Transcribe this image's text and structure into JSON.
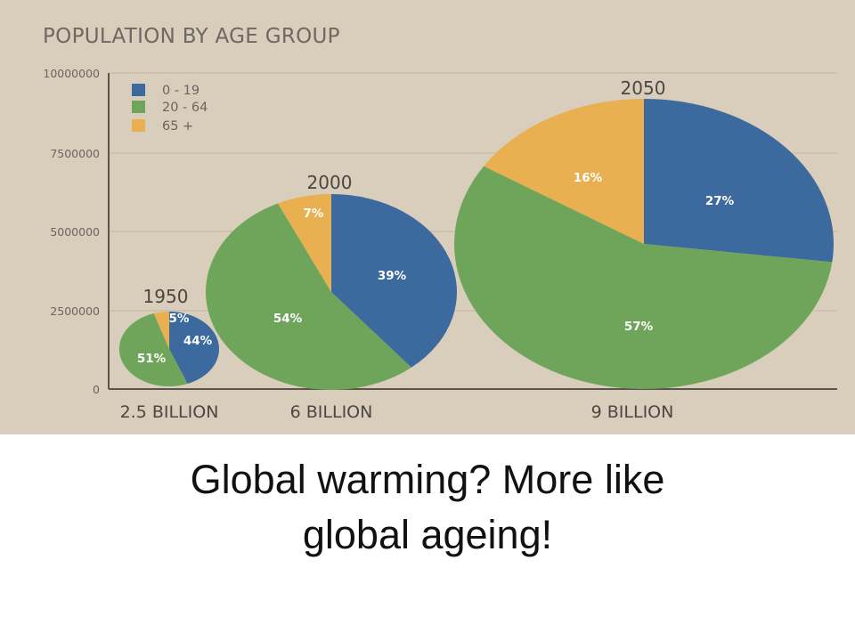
{
  "caption": {
    "line1": "Global warming? More like",
    "line2": "global ageing!"
  },
  "chart_data": {
    "type": "pie",
    "title": "POPULATION BY AGE GROUP",
    "yticks": [
      "10000000",
      "7500000",
      "5000000",
      "2500000",
      "0"
    ],
    "ylim": [
      0,
      10000000
    ],
    "grid": true,
    "legend_position": "top-left",
    "legend": [
      {
        "label": "0   - 19",
        "color": "#3c6a9e"
      },
      {
        "label": "20 - 64",
        "color": "#6fa55a"
      },
      {
        "label": "65 +",
        "color": "#e8b050"
      }
    ],
    "series": [
      {
        "name": "0 - 19",
        "color": "#3c6a9e"
      },
      {
        "name": "20 - 64",
        "color": "#6fa55a"
      },
      {
        "name": "65 +",
        "color": "#e8b050"
      }
    ],
    "pies": [
      {
        "year": "1950",
        "category": "2.5 BILLION",
        "values": [
          44,
          51,
          5
        ],
        "labels": [
          "44%",
          "51%",
          "5%"
        ]
      },
      {
        "year": "2000",
        "category": "6 BILLION",
        "values": [
          39,
          54,
          7
        ],
        "labels": [
          "39%",
          "54%",
          "7%"
        ]
      },
      {
        "year": "2050",
        "category": "9 BILLION",
        "values": [
          27,
          57,
          16
        ],
        "labels": [
          "27%",
          "57%",
          "16%"
        ]
      }
    ]
  }
}
